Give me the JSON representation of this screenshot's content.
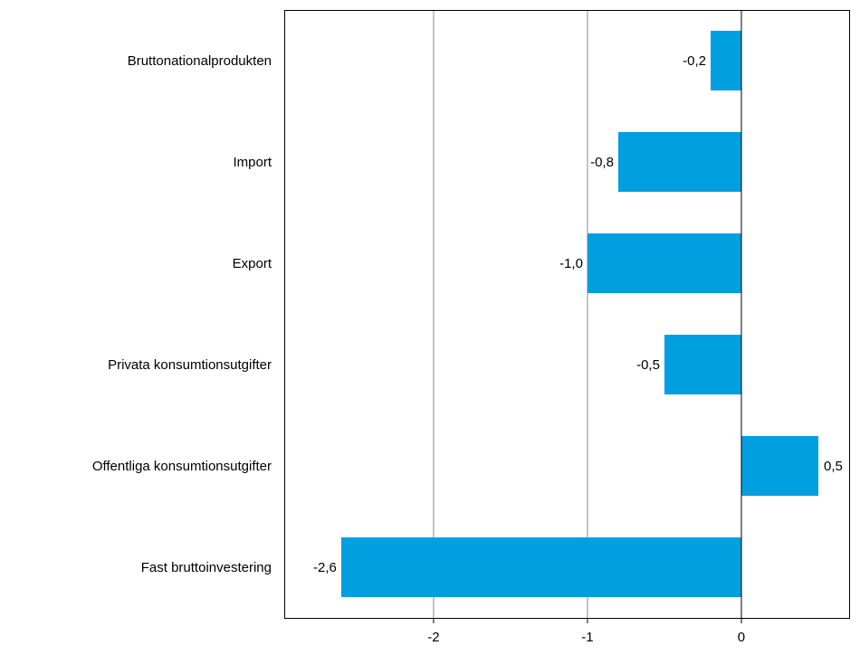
{
  "chart_data": {
    "type": "bar",
    "orientation": "horizontal",
    "title": "",
    "xlabel": "",
    "ylabel": "",
    "categories": [
      "Bruttonationalprodukten",
      "Import",
      "Export",
      "Privata konsumtionsutgifter",
      "Offentliga konsumtionsutgifter",
      "Fast bruttoinvestering"
    ],
    "values": [
      -0.2,
      -0.8,
      -1.0,
      -0.5,
      0.5,
      -2.6
    ],
    "value_labels": [
      "-0,2",
      "-0,8",
      "-1,0",
      "-0,5",
      "0,5",
      "-2,6"
    ],
    "xlim": [
      -2.97,
      0.7
    ],
    "xticks": [
      -2,
      -1,
      0
    ],
    "xtick_labels": [
      "-2",
      "-1",
      "0"
    ],
    "grid": "vertical",
    "bar_color": "#009fdf",
    "zero_line_color": "#000000",
    "grid_color": "#8c8c8c"
  }
}
